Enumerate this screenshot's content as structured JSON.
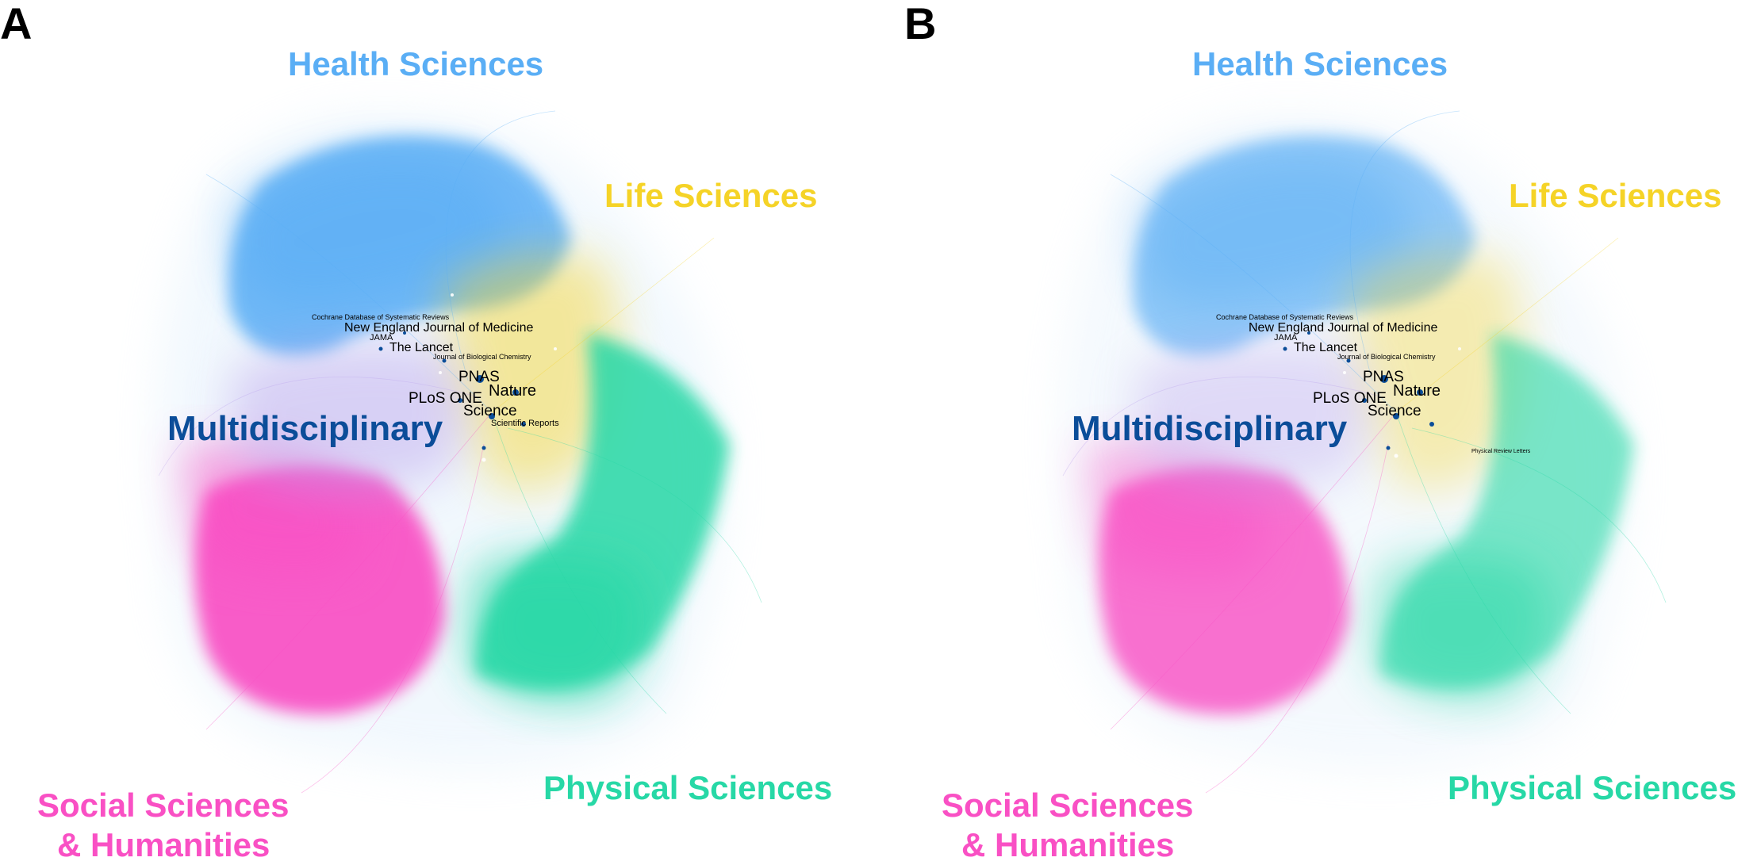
{
  "colors": {
    "health": "#5aaef5",
    "life": "#f5d327",
    "multidisciplinary": "#0b4d99",
    "social": "#f950c4",
    "physical": "#27d8a6"
  },
  "panels": [
    {
      "id": "A",
      "letter": "A",
      "regions": {
        "health": "Health Sciences",
        "life": "Life Sciences",
        "multidisciplinary": "Multidisciplinary",
        "social_line1": "Social Sciences",
        "social_line2": "& Humanities",
        "physical": "Physical Sciences"
      },
      "journals": {
        "cochrane": "Cochrane Database of Systematic Reviews",
        "nejm": "New England Journal of Medicine",
        "jama": "JAMA",
        "lancet": "The Lancet",
        "jbc": "Journal of Biological Chemistry",
        "pnas": "PNAS",
        "nature": "Nature",
        "plos": "PLoS ONE",
        "science": "Science",
        "extra": "Scientific Reports"
      }
    },
    {
      "id": "B",
      "letter": "B",
      "regions": {
        "health": "Health Sciences",
        "life": "Life Sciences",
        "multidisciplinary": "Multidisciplinary",
        "social_line1": "Social Sciences",
        "social_line2": "& Humanities",
        "physical": "Physical Sciences"
      },
      "journals": {
        "cochrane": "Cochrane Database of Systematic Reviews",
        "nejm": "New England Journal of Medicine",
        "jama": "JAMA",
        "lancet": "The Lancet",
        "jbc": "Journal of Biological Chemistry",
        "pnas": "PNAS",
        "nature": "Nature",
        "plos": "PLoS ONE",
        "science": "Science",
        "extra": "Physical Review Letters"
      }
    }
  ]
}
